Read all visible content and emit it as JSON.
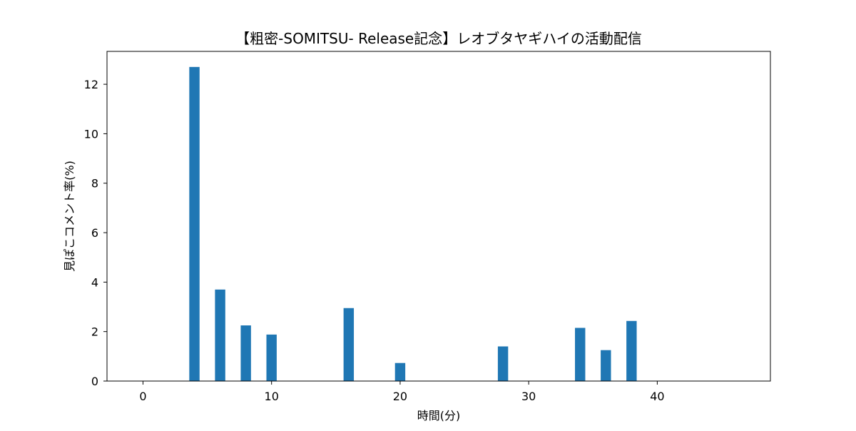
{
  "chart_data": {
    "type": "bar",
    "title": "【粗密-SOMITSU- Release記念】レオブタヤギハイの活動配信",
    "xlabel": "時間(分)",
    "ylabel": "見ぽこコメント率(%)",
    "x": [
      4,
      6,
      8,
      10,
      16,
      20,
      28,
      34,
      36,
      38
    ],
    "values": [
      12.7,
      3.7,
      2.25,
      1.88,
      2.95,
      0.73,
      1.4,
      2.15,
      1.25,
      2.43
    ],
    "xlim": [
      -2.8,
      48.8
    ],
    "ylim": [
      0,
      13.33
    ],
    "xticks": [
      0,
      10,
      20,
      30,
      40
    ],
    "yticks": [
      0,
      2,
      4,
      6,
      8,
      10,
      12
    ],
    "xtick_labels": [
      "0",
      "10",
      "20",
      "30",
      "40"
    ],
    "ytick_labels": [
      "0",
      "2",
      "4",
      "6",
      "8",
      "10",
      "12"
    ],
    "bar_width": 0.8,
    "color": "#1f77b4",
    "grid": false
  }
}
